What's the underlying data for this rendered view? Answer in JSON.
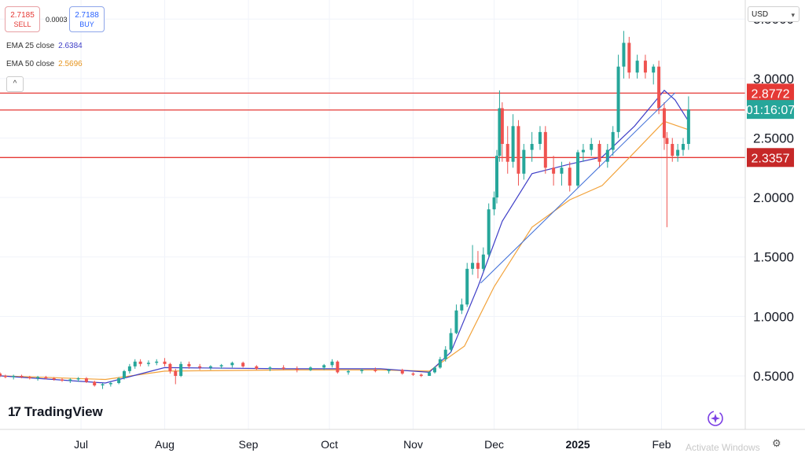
{
  "trade": {
    "sell_price": "2.7185",
    "sell_label": "SELL",
    "spread": "0.0003",
    "buy_price": "2.7188",
    "buy_label": "BUY"
  },
  "indicators": [
    {
      "label": "EMA 25 close",
      "value": "2.6384",
      "color": "#3f3fc7"
    },
    {
      "label": "EMA 50 close",
      "value": "2.5696",
      "color": "#f2a23a"
    }
  ],
  "currency": "USD",
  "brand": "TradingView",
  "watermark": "Activate Windows",
  "colors": {
    "up": "#26a69a",
    "down": "#ef5350",
    "hline": "#e53935",
    "trend": "#3f6fd8"
  },
  "chart_data": {
    "type": "candlestick",
    "y_axis": {
      "ticks": [
        "3.5000",
        "3.0000",
        "2.5000",
        "2.0000",
        "1.5000",
        "1.0000",
        "0.5000"
      ],
      "range": [
        0.05,
        3.66
      ]
    },
    "x_axis": {
      "ticks": [
        "Jul",
        "Aug",
        "Sep",
        "Oct",
        "Nov",
        "Dec",
        "2025",
        "Feb"
      ],
      "range": [
        "2024-06-01",
        "2025-03-04"
      ]
    },
    "price_labels": [
      {
        "text": "2.8772",
        "value": 2.8772,
        "kind": "level"
      },
      {
        "text": "01:16:07",
        "value": 2.74,
        "kind": "current"
      },
      {
        "text": "2.3357",
        "value": 2.3357,
        "kind": "level"
      }
    ],
    "horizontal_lines": [
      2.8772,
      2.735,
      2.3357
    ],
    "trendline": {
      "from": [
        "2024-11-26",
        1.28
      ],
      "to": [
        "2025-02-06",
        2.88
      ]
    },
    "candles": [
      [
        "2024-06-01",
        0.52,
        0.53,
        0.49,
        0.5
      ],
      [
        "2024-06-03",
        0.5,
        0.51,
        0.48,
        0.49
      ],
      [
        "2024-06-06",
        0.49,
        0.51,
        0.47,
        0.5
      ],
      [
        "2024-06-09",
        0.5,
        0.51,
        0.48,
        0.49
      ],
      [
        "2024-06-12",
        0.49,
        0.5,
        0.47,
        0.48
      ],
      [
        "2024-06-15",
        0.48,
        0.5,
        0.46,
        0.49
      ],
      [
        "2024-06-18",
        0.49,
        0.5,
        0.47,
        0.48
      ],
      [
        "2024-06-21",
        0.48,
        0.49,
        0.46,
        0.47
      ],
      [
        "2024-06-24",
        0.47,
        0.48,
        0.45,
        0.46
      ],
      [
        "2024-06-27",
        0.46,
        0.48,
        0.44,
        0.47
      ],
      [
        "2024-06-30",
        0.47,
        0.49,
        0.45,
        0.48
      ],
      [
        "2024-07-03",
        0.48,
        0.49,
        0.44,
        0.45
      ],
      [
        "2024-07-06",
        0.45,
        0.46,
        0.41,
        0.42
      ],
      [
        "2024-07-09",
        0.42,
        0.44,
        0.39,
        0.43
      ],
      [
        "2024-07-12",
        0.43,
        0.45,
        0.41,
        0.44
      ],
      [
        "2024-07-15",
        0.44,
        0.49,
        0.43,
        0.48
      ],
      [
        "2024-07-17",
        0.48,
        0.55,
        0.47,
        0.54
      ],
      [
        "2024-07-19",
        0.54,
        0.6,
        0.52,
        0.58
      ],
      [
        "2024-07-21",
        0.58,
        0.64,
        0.56,
        0.62
      ],
      [
        "2024-07-23",
        0.62,
        0.64,
        0.58,
        0.6
      ],
      [
        "2024-07-26",
        0.6,
        0.63,
        0.58,
        0.61
      ],
      [
        "2024-07-29",
        0.61,
        0.64,
        0.59,
        0.62
      ],
      [
        "2024-08-01",
        0.62,
        0.65,
        0.58,
        0.6
      ],
      [
        "2024-08-03",
        0.6,
        0.61,
        0.52,
        0.54
      ],
      [
        "2024-08-05",
        0.54,
        0.56,
        0.43,
        0.5
      ],
      [
        "2024-08-07",
        0.5,
        0.62,
        0.49,
        0.6
      ],
      [
        "2024-08-10",
        0.6,
        0.62,
        0.56,
        0.58
      ],
      [
        "2024-08-14",
        0.58,
        0.6,
        0.55,
        0.57
      ],
      [
        "2024-08-18",
        0.57,
        0.59,
        0.55,
        0.58
      ],
      [
        "2024-08-22",
        0.58,
        0.6,
        0.56,
        0.59
      ],
      [
        "2024-08-26",
        0.59,
        0.62,
        0.57,
        0.61
      ],
      [
        "2024-08-30",
        0.61,
        0.62,
        0.57,
        0.58
      ],
      [
        "2024-09-04",
        0.58,
        0.59,
        0.55,
        0.56
      ],
      [
        "2024-09-09",
        0.56,
        0.58,
        0.54,
        0.57
      ],
      [
        "2024-09-14",
        0.57,
        0.59,
        0.55,
        0.56
      ],
      [
        "2024-09-19",
        0.56,
        0.58,
        0.53,
        0.55
      ],
      [
        "2024-09-24",
        0.55,
        0.58,
        0.54,
        0.57
      ],
      [
        "2024-09-29",
        0.57,
        0.6,
        0.55,
        0.59
      ],
      [
        "2024-10-02",
        0.59,
        0.64,
        0.57,
        0.62
      ],
      [
        "2024-10-04",
        0.62,
        0.63,
        0.52,
        0.53
      ],
      [
        "2024-10-08",
        0.53,
        0.55,
        0.51,
        0.54
      ],
      [
        "2024-10-13",
        0.54,
        0.56,
        0.52,
        0.55
      ],
      [
        "2024-10-18",
        0.55,
        0.57,
        0.53,
        0.54
      ],
      [
        "2024-10-23",
        0.54,
        0.56,
        0.52,
        0.55
      ],
      [
        "2024-10-28",
        0.55,
        0.56,
        0.51,
        0.52
      ],
      [
        "2024-11-01",
        0.52,
        0.53,
        0.5,
        0.51
      ],
      [
        "2024-11-04",
        0.51,
        0.52,
        0.49,
        0.5
      ],
      [
        "2024-11-07",
        0.5,
        0.54,
        0.5,
        0.53
      ],
      [
        "2024-11-09",
        0.53,
        0.58,
        0.52,
        0.57
      ],
      [
        "2024-11-11",
        0.57,
        0.66,
        0.56,
        0.64
      ],
      [
        "2024-11-13",
        0.64,
        0.75,
        0.62,
        0.72
      ],
      [
        "2024-11-15",
        0.72,
        0.9,
        0.7,
        0.86
      ],
      [
        "2024-11-17",
        0.86,
        1.1,
        0.85,
        1.05
      ],
      [
        "2024-11-19",
        1.05,
        1.15,
        1.02,
        1.1
      ],
      [
        "2024-11-21",
        1.1,
        1.45,
        1.08,
        1.4
      ],
      [
        "2024-11-23",
        1.4,
        1.6,
        1.35,
        1.45
      ],
      [
        "2024-11-25",
        1.45,
        1.55,
        1.32,
        1.4
      ],
      [
        "2024-11-27",
        1.4,
        1.58,
        1.38,
        1.52
      ],
      [
        "2024-11-29",
        1.52,
        1.95,
        1.5,
        1.9
      ],
      [
        "2024-12-01",
        1.9,
        2.05,
        1.85,
        2.0
      ],
      [
        "2024-12-02",
        2.0,
        2.4,
        1.95,
        2.35
      ],
      [
        "2024-12-03",
        2.35,
        2.9,
        2.3,
        2.75
      ],
      [
        "2024-12-04",
        2.75,
        2.8,
        2.3,
        2.45
      ],
      [
        "2024-12-06",
        2.45,
        2.6,
        2.2,
        2.3
      ],
      [
        "2024-12-08",
        2.3,
        2.7,
        2.25,
        2.6
      ],
      [
        "2024-12-10",
        2.6,
        2.65,
        2.1,
        2.2
      ],
      [
        "2024-12-12",
        2.2,
        2.45,
        2.15,
        2.4
      ],
      [
        "2024-12-15",
        2.4,
        2.55,
        2.3,
        2.45
      ],
      [
        "2024-12-18",
        2.45,
        2.6,
        2.4,
        2.55
      ],
      [
        "2024-12-20",
        2.55,
        2.6,
        2.2,
        2.25
      ],
      [
        "2024-12-23",
        2.25,
        2.35,
        2.1,
        2.2
      ],
      [
        "2024-12-26",
        2.2,
        2.3,
        2.1,
        2.25
      ],
      [
        "2024-12-29",
        2.25,
        2.3,
        2.05,
        2.1
      ],
      [
        "2025-01-01",
        2.1,
        2.4,
        2.08,
        2.38
      ],
      [
        "2025-01-03",
        2.38,
        2.45,
        2.3,
        2.4
      ],
      [
        "2025-01-06",
        2.4,
        2.5,
        2.35,
        2.45
      ],
      [
        "2025-01-09",
        2.45,
        2.48,
        2.25,
        2.3
      ],
      [
        "2025-01-12",
        2.3,
        2.45,
        2.25,
        2.4
      ],
      [
        "2025-01-14",
        2.4,
        2.6,
        2.35,
        2.55
      ],
      [
        "2025-01-16",
        2.55,
        3.2,
        2.5,
        3.1
      ],
      [
        "2025-01-18",
        3.1,
        3.4,
        3.0,
        3.3
      ],
      [
        "2025-01-20",
        3.3,
        3.35,
        3.0,
        3.05
      ],
      [
        "2025-01-23",
        3.05,
        3.2,
        3.0,
        3.15
      ],
      [
        "2025-01-26",
        3.15,
        3.2,
        3.0,
        3.05
      ],
      [
        "2025-01-29",
        3.05,
        3.12,
        2.95,
        3.1
      ],
      [
        "2025-01-31",
        3.1,
        3.15,
        2.7,
        2.75
      ],
      [
        "2025-02-02",
        2.75,
        2.8,
        2.4,
        2.5
      ],
      [
        "2025-02-03",
        2.5,
        2.55,
        1.75,
        2.45
      ],
      [
        "2025-02-05",
        2.45,
        2.5,
        2.3,
        2.35
      ],
      [
        "2025-02-07",
        2.35,
        2.45,
        2.3,
        2.4
      ],
      [
        "2025-02-09",
        2.4,
        2.5,
        2.35,
        2.45
      ],
      [
        "2025-02-11",
        2.45,
        2.85,
        2.4,
        2.74
      ]
    ],
    "ema25": [
      [
        "2024-06-01",
        0.5
      ],
      [
        "2024-07-10",
        0.44
      ],
      [
        "2024-08-01",
        0.57
      ],
      [
        "2024-09-15",
        0.56
      ],
      [
        "2024-10-20",
        0.56
      ],
      [
        "2024-11-07",
        0.53
      ],
      [
        "2024-11-15",
        0.7
      ],
      [
        "2024-11-25",
        1.25
      ],
      [
        "2024-12-04",
        1.8
      ],
      [
        "2024-12-15",
        2.2
      ],
      [
        "2024-12-29",
        2.28
      ],
      [
        "2025-01-10",
        2.34
      ],
      [
        "2025-01-22",
        2.6
      ],
      [
        "2025-02-02",
        2.9
      ],
      [
        "2025-02-06",
        2.82
      ],
      [
        "2025-02-11",
        2.64
      ]
    ],
    "ema50": [
      [
        "2024-06-01",
        0.5
      ],
      [
        "2024-07-10",
        0.47
      ],
      [
        "2024-08-01",
        0.54
      ],
      [
        "2024-09-15",
        0.55
      ],
      [
        "2024-10-20",
        0.55
      ],
      [
        "2024-11-07",
        0.54
      ],
      [
        "2024-11-20",
        0.75
      ],
      [
        "2024-12-01",
        1.25
      ],
      [
        "2024-12-15",
        1.75
      ],
      [
        "2024-12-29",
        1.98
      ],
      [
        "2025-01-10",
        2.1
      ],
      [
        "2025-01-22",
        2.38
      ],
      [
        "2025-02-02",
        2.64
      ],
      [
        "2025-02-11",
        2.57
      ]
    ]
  }
}
